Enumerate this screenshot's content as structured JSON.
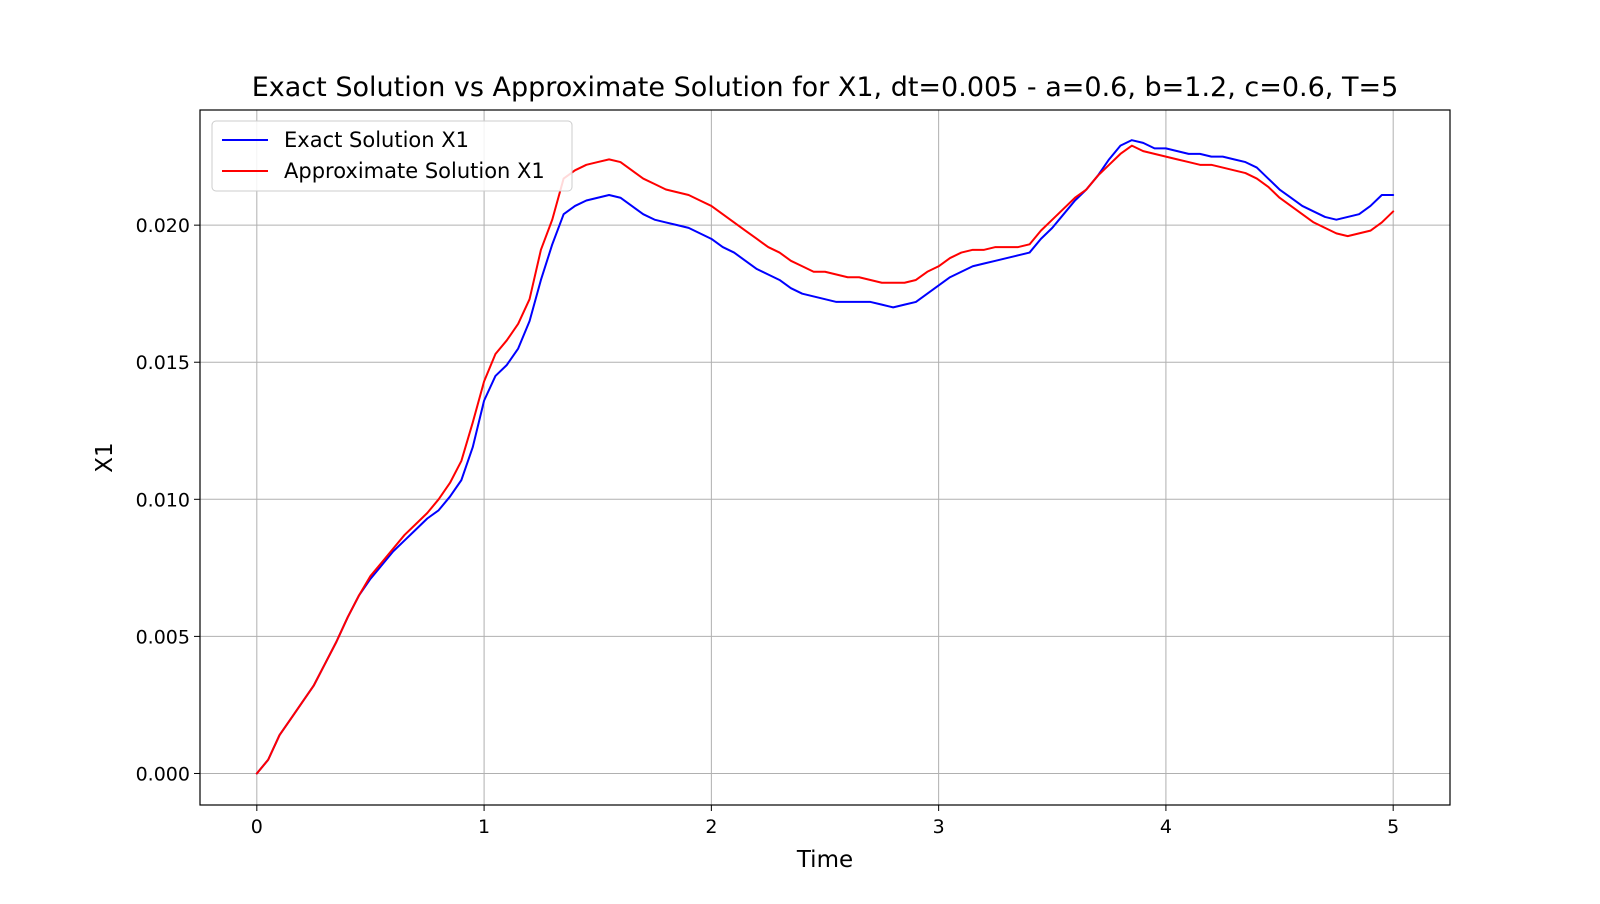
{
  "chart_data": {
    "type": "line",
    "title": "Exact Solution vs Approximate Solution for X1, dt=0.005 - a=0.6, b=1.2, c=0.6, T=5",
    "xlabel": "Time",
    "ylabel": "X1",
    "xlim": [
      -0.25,
      5.25
    ],
    "ylim": [
      -0.00115,
      0.0242
    ],
    "xticks": [
      0,
      1,
      2,
      3,
      4,
      5
    ],
    "xtick_labels": [
      "0",
      "1",
      "2",
      "3",
      "4",
      "5"
    ],
    "yticks": [
      0.0,
      0.005,
      0.01,
      0.015,
      0.02
    ],
    "ytick_labels": [
      "0.000",
      "0.005",
      "0.010",
      "0.015",
      "0.020"
    ],
    "grid": true,
    "legend_position": "top-left",
    "x": [
      0,
      0.05,
      0.1,
      0.15,
      0.2,
      0.25,
      0.3,
      0.35,
      0.4,
      0.45,
      0.5,
      0.55,
      0.6,
      0.65,
      0.7,
      0.75,
      0.8,
      0.85,
      0.9,
      0.95,
      1.0,
      1.05,
      1.1,
      1.15,
      1.2,
      1.25,
      1.3,
      1.35,
      1.4,
      1.45,
      1.5,
      1.55,
      1.6,
      1.65,
      1.7,
      1.75,
      1.8,
      1.85,
      1.9,
      1.95,
      2.0,
      2.05,
      2.1,
      2.15,
      2.2,
      2.25,
      2.3,
      2.35,
      2.4,
      2.45,
      2.5,
      2.55,
      2.6,
      2.65,
      2.7,
      2.75,
      2.8,
      2.85,
      2.9,
      2.95,
      3.0,
      3.05,
      3.1,
      3.15,
      3.2,
      3.25,
      3.3,
      3.35,
      3.4,
      3.45,
      3.5,
      3.55,
      3.6,
      3.65,
      3.7,
      3.75,
      3.8,
      3.85,
      3.9,
      3.95,
      4.0,
      4.05,
      4.1,
      4.15,
      4.2,
      4.25,
      4.3,
      4.35,
      4.4,
      4.45,
      4.5,
      4.55,
      4.6,
      4.65,
      4.7,
      4.75,
      4.8,
      4.85,
      4.9,
      4.95,
      5.0
    ],
    "series": [
      {
        "name": "Exact Solution X1",
        "color": "#0000ff",
        "values": [
          0.0,
          0.0005,
          0.0014,
          0.002,
          0.0026,
          0.0032,
          0.004,
          0.0048,
          0.0057,
          0.0065,
          0.0071,
          0.0076,
          0.0081,
          0.0085,
          0.0089,
          0.0093,
          0.0096,
          0.0101,
          0.0107,
          0.0119,
          0.0136,
          0.0145,
          0.0149,
          0.0155,
          0.0165,
          0.018,
          0.0193,
          0.0204,
          0.0207,
          0.0209,
          0.021,
          0.0211,
          0.021,
          0.0207,
          0.0204,
          0.0202,
          0.0201,
          0.02,
          0.0199,
          0.0197,
          0.0195,
          0.0192,
          0.019,
          0.0187,
          0.0184,
          0.0182,
          0.018,
          0.0177,
          0.0175,
          0.0174,
          0.0173,
          0.0172,
          0.0172,
          0.0172,
          0.0172,
          0.0171,
          0.017,
          0.0171,
          0.0172,
          0.0175,
          0.0178,
          0.0181,
          0.0183,
          0.0185,
          0.0186,
          0.0187,
          0.0188,
          0.0189,
          0.019,
          0.0195,
          0.0199,
          0.0204,
          0.0209,
          0.0213,
          0.0218,
          0.0224,
          0.0229,
          0.0231,
          0.023,
          0.0228,
          0.0228,
          0.0227,
          0.0226,
          0.0226,
          0.0225,
          0.0225,
          0.0224,
          0.0223,
          0.0221,
          0.0217,
          0.0213,
          0.021,
          0.0207,
          0.0205,
          0.0203,
          0.0202,
          0.0203,
          0.0204,
          0.0207,
          0.0211,
          0.0211
        ]
      },
      {
        "name": "Approximate Solution X1",
        "color": "#ff0000",
        "values": [
          0.0,
          0.0005,
          0.0014,
          0.002,
          0.0026,
          0.0032,
          0.004,
          0.0048,
          0.0057,
          0.0065,
          0.0072,
          0.0077,
          0.0082,
          0.0087,
          0.0091,
          0.0095,
          0.01,
          0.0106,
          0.0114,
          0.0128,
          0.0143,
          0.0153,
          0.0158,
          0.0164,
          0.0173,
          0.0191,
          0.0202,
          0.0217,
          0.022,
          0.0222,
          0.0223,
          0.0224,
          0.0223,
          0.022,
          0.0217,
          0.0215,
          0.0213,
          0.0212,
          0.0211,
          0.0209,
          0.0207,
          0.0204,
          0.0201,
          0.0198,
          0.0195,
          0.0192,
          0.019,
          0.0187,
          0.0185,
          0.0183,
          0.0183,
          0.0182,
          0.0181,
          0.0181,
          0.018,
          0.0179,
          0.0179,
          0.0179,
          0.018,
          0.0183,
          0.0185,
          0.0188,
          0.019,
          0.0191,
          0.0191,
          0.0192,
          0.0192,
          0.0192,
          0.0193,
          0.0198,
          0.0202,
          0.0206,
          0.021,
          0.0213,
          0.0218,
          0.0222,
          0.0226,
          0.0229,
          0.0227,
          0.0226,
          0.0225,
          0.0224,
          0.0223,
          0.0222,
          0.0222,
          0.0221,
          0.022,
          0.0219,
          0.0217,
          0.0214,
          0.021,
          0.0207,
          0.0204,
          0.0201,
          0.0199,
          0.0197,
          0.0196,
          0.0197,
          0.0198,
          0.0201,
          0.0205
        ]
      }
    ]
  }
}
